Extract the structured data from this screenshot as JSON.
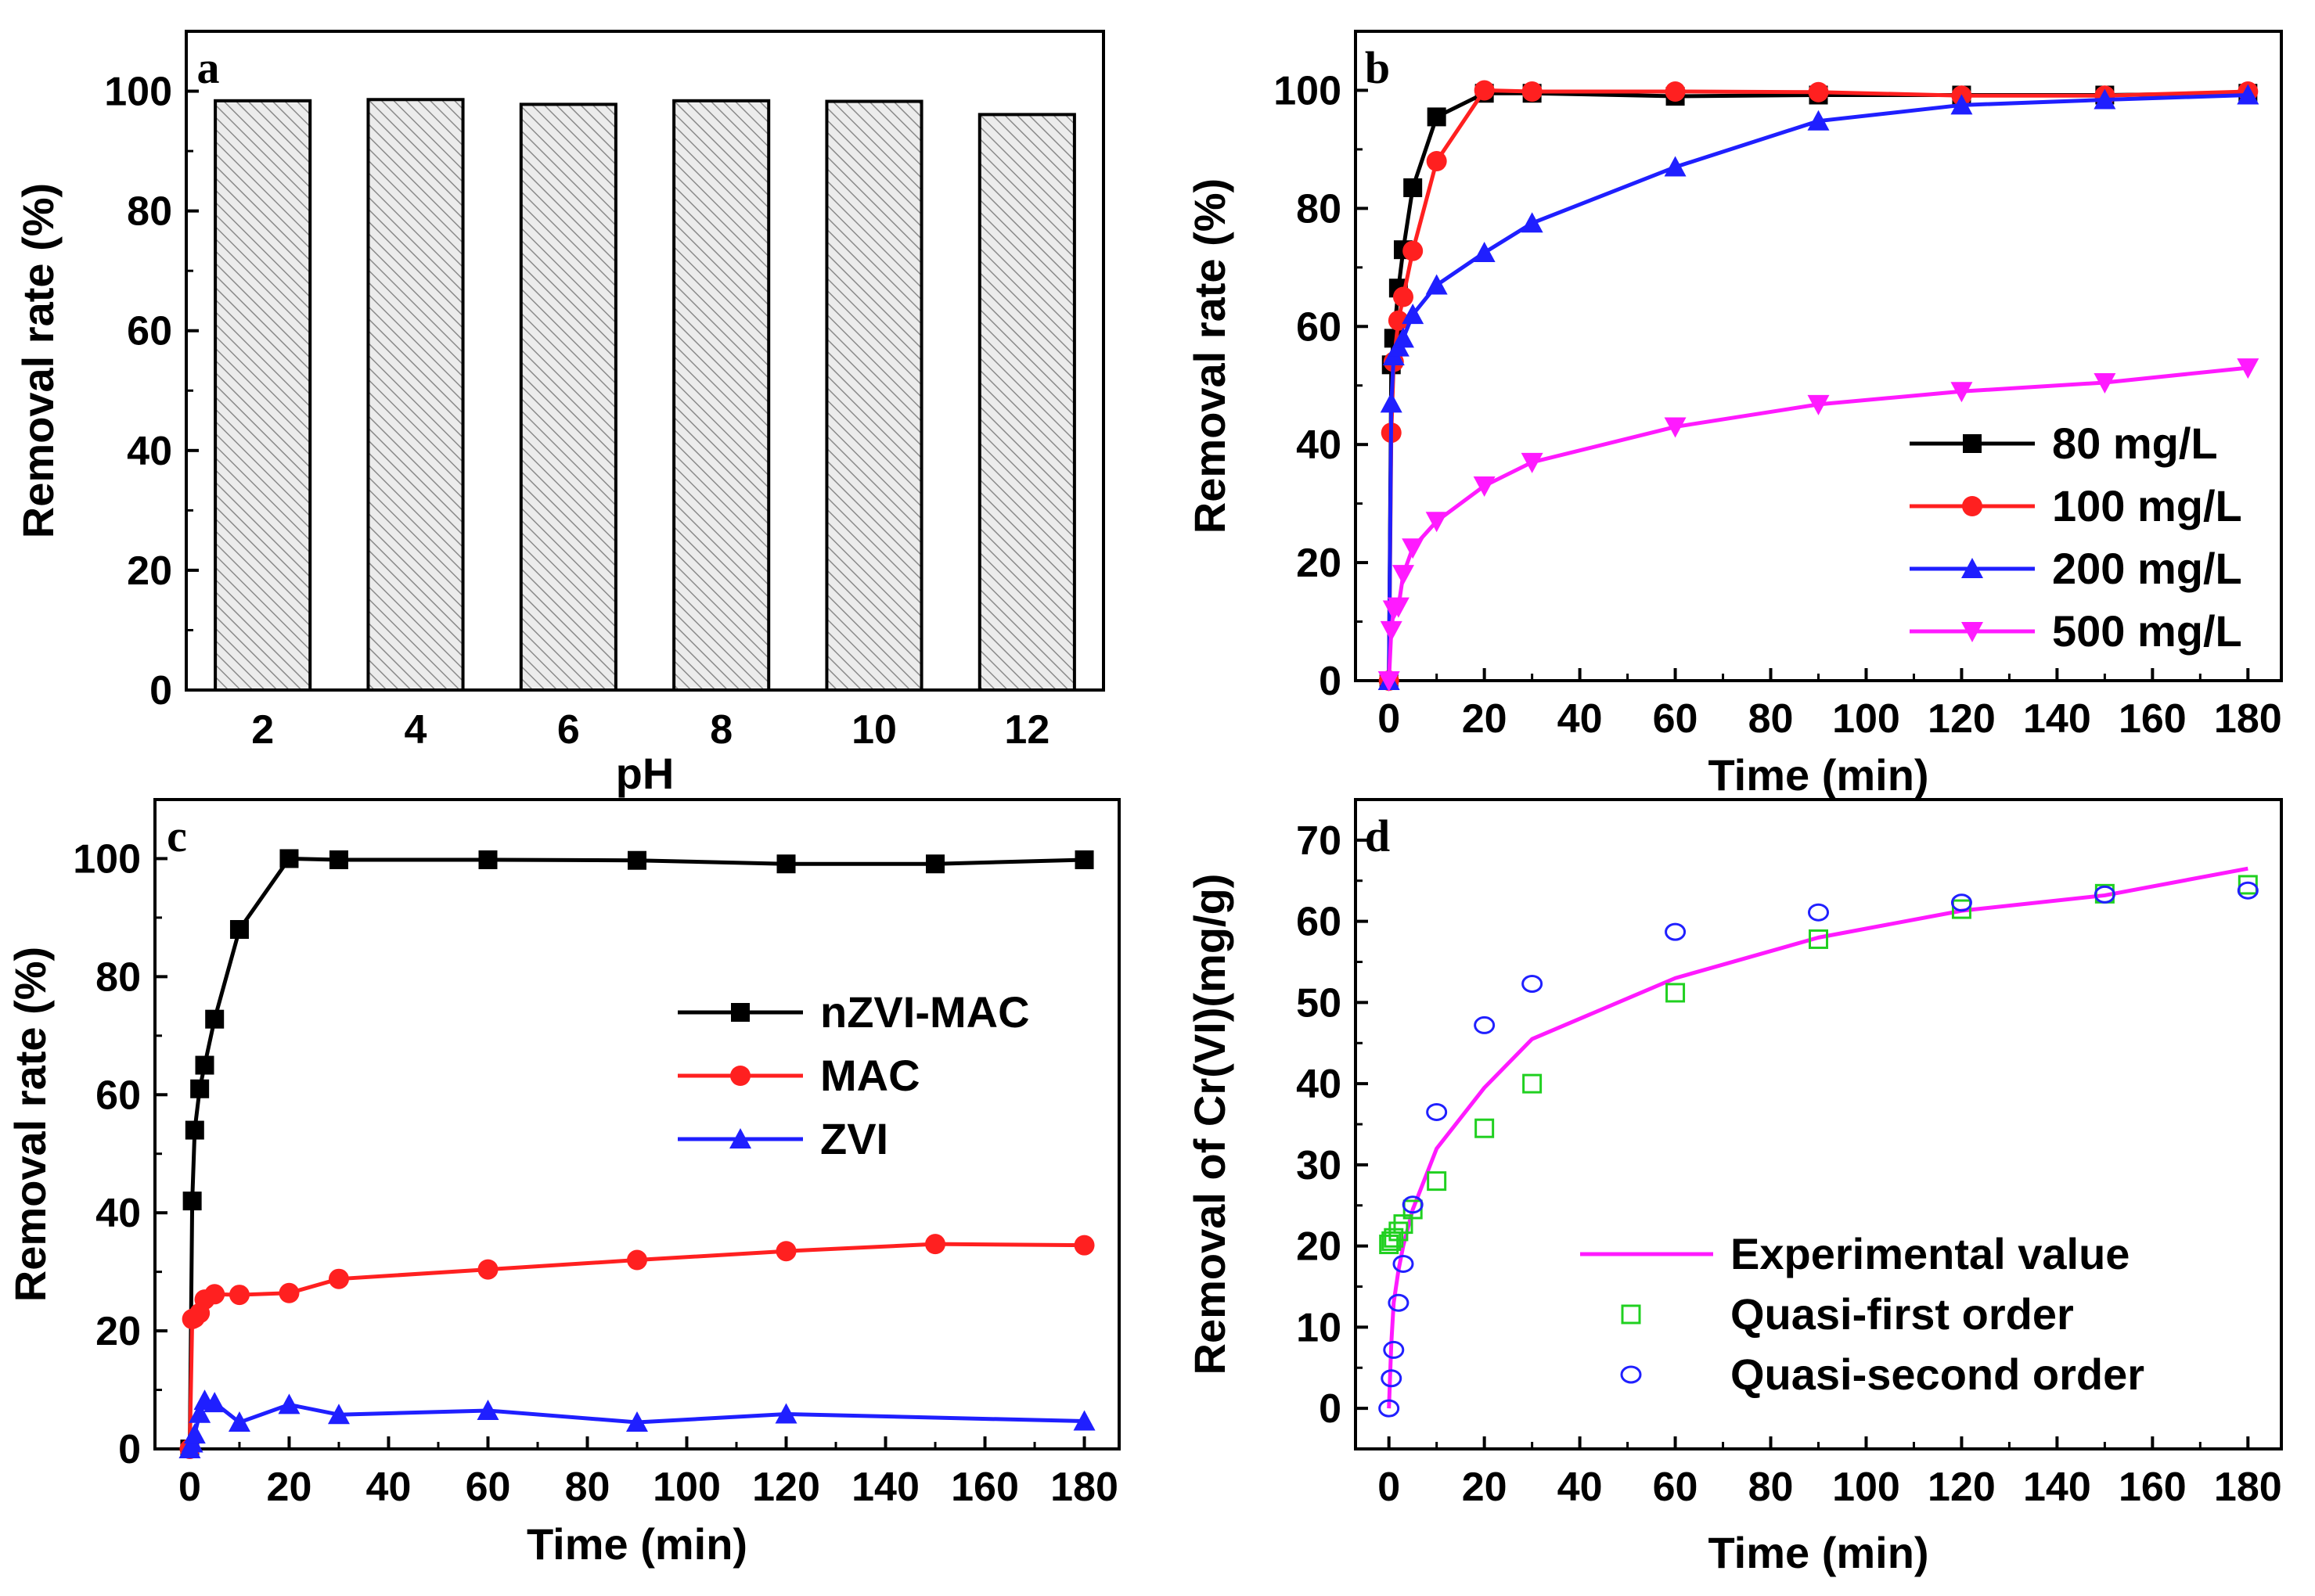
{
  "chart_data": [
    {
      "id": "a",
      "type": "bar",
      "panel_label": "a",
      "xlabel": "pH",
      "ylabel": "Removal rate (%)",
      "ylim": [
        0,
        110
      ],
      "yticks": [
        0,
        20,
        40,
        60,
        80,
        100
      ],
      "categories": [
        "2",
        "4",
        "6",
        "8",
        "10",
        "12"
      ],
      "values": [
        98.4,
        98.6,
        97.8,
        98.4,
        98.3,
        96.1
      ],
      "bar_fill": "hatched light gray"
    },
    {
      "id": "b",
      "type": "line",
      "panel_label": "b",
      "xlabel": "Time (min)",
      "ylabel": "Removal rate (%)",
      "xlim": [
        -7,
        187
      ],
      "ylim": [
        0,
        110
      ],
      "xticks": [
        0,
        20,
        40,
        60,
        80,
        100,
        120,
        140,
        160,
        180
      ],
      "yticks": [
        0,
        20,
        40,
        60,
        80,
        100
      ],
      "legend_position": "bottom-right",
      "series": [
        {
          "name": "80 mg/L",
          "color": "#000000",
          "marker": "square",
          "x": [
            0,
            0.5,
            1,
            2,
            3,
            5,
            10,
            20,
            30,
            60,
            90,
            120,
            150,
            180
          ],
          "y": [
            0,
            53.5,
            58,
            66.5,
            73,
            83.5,
            95.5,
            99.5,
            99.5,
            99,
            99.2,
            99.2,
            99.2,
            99.5
          ]
        },
        {
          "name": "100 mg/L",
          "color": "#ff2020",
          "marker": "circle",
          "x": [
            0,
            0.5,
            1,
            2,
            3,
            5,
            10,
            20,
            30,
            60,
            90,
            120,
            150,
            180
          ],
          "y": [
            0,
            42,
            54,
            61,
            65,
            72.8,
            88,
            100,
            99.8,
            99.8,
            99.7,
            99.1,
            99.1,
            99.8
          ]
        },
        {
          "name": "200 mg/L",
          "color": "#1f1fff",
          "marker": "triangle-up",
          "x": [
            0,
            0.5,
            1,
            2,
            3,
            5,
            10,
            20,
            30,
            60,
            90,
            120,
            150,
            180
          ],
          "y": [
            0,
            47,
            55,
            56.5,
            58,
            62,
            67,
            72.5,
            77.5,
            87,
            94.8,
            97.5,
            98.4,
            99.2
          ]
        },
        {
          "name": "500 mg/L",
          "color": "#ff1aff",
          "marker": "triangle-down",
          "x": [
            0,
            0.5,
            1,
            2,
            3,
            5,
            10,
            20,
            30,
            60,
            90,
            120,
            150,
            180
          ],
          "y": [
            0,
            8.5,
            12,
            12.5,
            18,
            22.5,
            27,
            33,
            37,
            43,
            46.8,
            49,
            50.5,
            53
          ]
        }
      ]
    },
    {
      "id": "c",
      "type": "line",
      "panel_label": "c",
      "xlabel": "Time (min)",
      "ylabel": "Removal rate (%)",
      "xlim": [
        -7,
        187
      ],
      "ylim": [
        0,
        110
      ],
      "xticks": [
        0,
        20,
        40,
        60,
        80,
        100,
        120,
        140,
        160,
        180
      ],
      "yticks": [
        0,
        20,
        40,
        60,
        80,
        100
      ],
      "legend_position": "center-right",
      "series": [
        {
          "name": "nZVI-MAC",
          "color": "#000000",
          "marker": "square",
          "x": [
            0,
            0.5,
            1,
            2,
            3,
            5,
            10,
            20,
            30,
            60,
            90,
            120,
            150,
            180
          ],
          "y": [
            0,
            42,
            54,
            61,
            65,
            72.8,
            88,
            100,
            99.8,
            99.8,
            99.7,
            99.1,
            99.1,
            99.8
          ]
        },
        {
          "name": "MAC",
          "color": "#ff2020",
          "marker": "circle",
          "x": [
            0,
            0.5,
            1,
            2,
            3,
            5,
            10,
            20,
            30,
            60,
            90,
            120,
            150,
            180
          ],
          "y": [
            0,
            22,
            22.2,
            23,
            25.3,
            26.2,
            26.1,
            26.4,
            28.8,
            30.4,
            32,
            33.5,
            34.7,
            34.5
          ]
        },
        {
          "name": "ZVI",
          "color": "#1f1fff",
          "marker": "triangle-up",
          "x": [
            0,
            0.5,
            1,
            2,
            3,
            5,
            10,
            20,
            30,
            60,
            90,
            120,
            150,
            180
          ],
          "y": [
            0,
            1,
            2.5,
            6,
            8.2,
            7.8,
            4.5,
            7.5,
            5.8,
            6.5,
            4.5,
            5.9,
            null,
            4.7
          ]
        }
      ]
    },
    {
      "id": "d",
      "type": "scatter",
      "panel_label": "d",
      "xlabel": "Time (min)",
      "ylabel": "Removal of Cr(VI)(mg/g)",
      "xlim": [
        -7,
        187
      ],
      "ylim": [
        -5,
        75
      ],
      "xticks": [
        0,
        20,
        40,
        60,
        80,
        100,
        120,
        140,
        160,
        180
      ],
      "yticks": [
        0,
        10,
        20,
        30,
        40,
        50,
        60,
        70
      ],
      "legend_position": "bottom-right",
      "series": [
        {
          "name": "Experimental value",
          "color": "#ff1aff",
          "style": "line",
          "x": [
            0,
            0.5,
            1,
            2,
            3,
            5,
            10,
            20,
            30,
            60,
            90,
            120,
            150,
            180
          ],
          "y": [
            0,
            8,
            13,
            17,
            20,
            24.5,
            32,
            39.5,
            45.5,
            53,
            58,
            61.3,
            63.2,
            66.5
          ]
        },
        {
          "name": "Quasi-first order",
          "color": "#20d020",
          "style": "open-square",
          "x": [
            0,
            0.5,
            1,
            2,
            3,
            5,
            10,
            20,
            30,
            60,
            90,
            120,
            150,
            180
          ],
          "y": [
            20.2,
            20.6,
            21,
            21.8,
            22.7,
            24.5,
            28,
            34.5,
            40,
            51.2,
            57.8,
            61.5,
            63.4,
            64.5
          ]
        },
        {
          "name": "Quasi-second order",
          "color": "#2020ff",
          "style": "open-circle",
          "x": [
            0,
            0.5,
            1,
            2,
            3,
            5,
            10,
            20,
            30,
            60,
            90,
            120,
            150,
            180
          ],
          "y": [
            0,
            3.7,
            7.2,
            13,
            17.8,
            25.1,
            36.5,
            47.2,
            52.3,
            58.7,
            61.1,
            62.3,
            63.3,
            63.8
          ]
        }
      ]
    }
  ]
}
